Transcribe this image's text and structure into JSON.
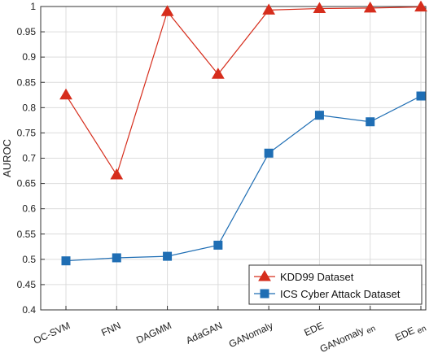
{
  "chart_data": {
    "type": "line",
    "ylabel": "AUROC",
    "ylim": [
      0.4,
      1.0
    ],
    "y_ticks": [
      "0.4",
      "0.45",
      "0.5",
      "0.55",
      "0.6",
      "0.65",
      "0.7",
      "0.75",
      "0.8",
      "0.85",
      "0.9",
      "0.95",
      "1"
    ],
    "categories": [
      "OC-SVM",
      "FNN",
      "DAGMM",
      "AdaGAN",
      "GANomaly",
      "EDE",
      "GANomaly",
      "EDE"
    ],
    "category_subscripts": [
      "",
      "",
      "",
      "",
      "",
      "",
      "en",
      "en"
    ],
    "grid": true,
    "legend_position": "bottom-right",
    "series": [
      {
        "name": "KDD99 Dataset",
        "color": "#d62d1c",
        "marker": "triangle",
        "values": [
          0.825,
          0.667,
          0.99,
          0.866,
          0.993,
          0.996,
          0.997,
          0.999
        ]
      },
      {
        "name": "ICS Cyber Attack Dataset",
        "color": "#1f6eb4",
        "marker": "square",
        "values": [
          0.497,
          0.503,
          0.506,
          0.528,
          0.71,
          0.785,
          0.772,
          0.823
        ]
      }
    ]
  }
}
